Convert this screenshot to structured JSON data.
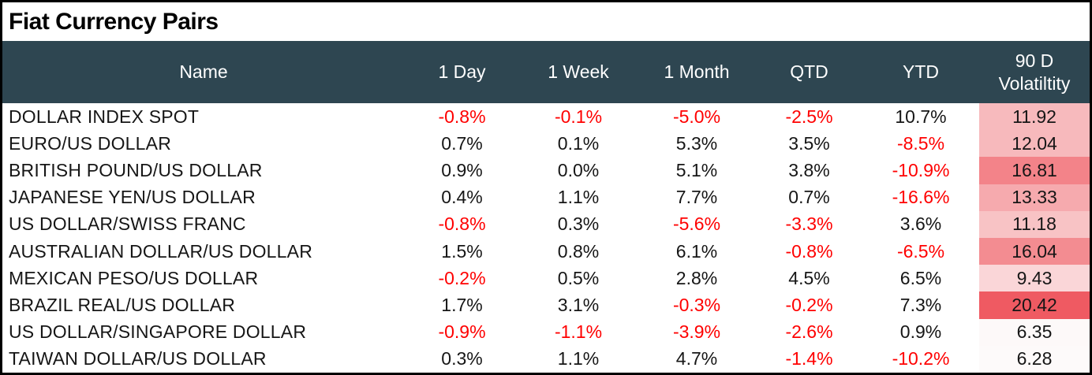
{
  "title": "Fiat Currency Pairs",
  "colors": {
    "header_bg": "#2E4651",
    "header_text": "#FFFFFF",
    "negative": "#FF0000",
    "text": "#161616",
    "heatmap_min": "#FDFAFA",
    "heatmap_max": "#EF5A62"
  },
  "chart_data": {
    "type": "table",
    "title": "Fiat Currency Pairs",
    "columns": [
      "Name",
      "1 Day",
      "1 Week",
      "1 Month",
      "QTD",
      "YTD",
      "90 D Volatiltity"
    ],
    "heatmap_column": "90 D Volatiltity",
    "rows": [
      {
        "name": "DOLLAR INDEX SPOT",
        "values": [
          "-0.8%",
          "-0.1%",
          "-5.0%",
          "-2.5%",
          "10.7%"
        ],
        "volatility": "11.92"
      },
      {
        "name": "EURO/US DOLLAR",
        "values": [
          "0.7%",
          "0.1%",
          "5.3%",
          "3.5%",
          "-8.5%"
        ],
        "volatility": "12.04"
      },
      {
        "name": "BRITISH POUND/US DOLLAR",
        "values": [
          "0.9%",
          "0.0%",
          "5.1%",
          "3.8%",
          "-10.9%"
        ],
        "volatility": "16.81"
      },
      {
        "name": "JAPANESE YEN/US DOLLAR",
        "values": [
          "0.4%",
          "1.1%",
          "7.7%",
          "0.7%",
          "-16.6%"
        ],
        "volatility": "13.33"
      },
      {
        "name": "US DOLLAR/SWISS FRANC",
        "values": [
          "-0.8%",
          "0.3%",
          "-5.6%",
          "-3.3%",
          "3.6%"
        ],
        "volatility": "11.18"
      },
      {
        "name": "AUSTRALIAN DOLLAR/US DOLLAR",
        "values": [
          "1.5%",
          "0.8%",
          "6.1%",
          "-0.8%",
          "-6.5%"
        ],
        "volatility": "16.04"
      },
      {
        "name": "MEXICAN PESO/US DOLLAR",
        "values": [
          "-0.2%",
          "0.5%",
          "2.8%",
          "4.5%",
          "6.5%"
        ],
        "volatility": "9.43"
      },
      {
        "name": "BRAZIL REAL/US DOLLAR",
        "values": [
          "1.7%",
          "3.1%",
          "-0.3%",
          "-0.2%",
          "7.3%"
        ],
        "volatility": "20.42"
      },
      {
        "name": "US DOLLAR/SINGAPORE DOLLAR",
        "values": [
          "-0.9%",
          "-1.1%",
          "-3.9%",
          "-2.6%",
          "0.9%"
        ],
        "volatility": "6.35"
      },
      {
        "name": "TAIWAN DOLLAR/US DOLLAR",
        "values": [
          "0.3%",
          "1.1%",
          "4.7%",
          "-1.4%",
          "-10.2%"
        ],
        "volatility": "6.28"
      }
    ]
  }
}
